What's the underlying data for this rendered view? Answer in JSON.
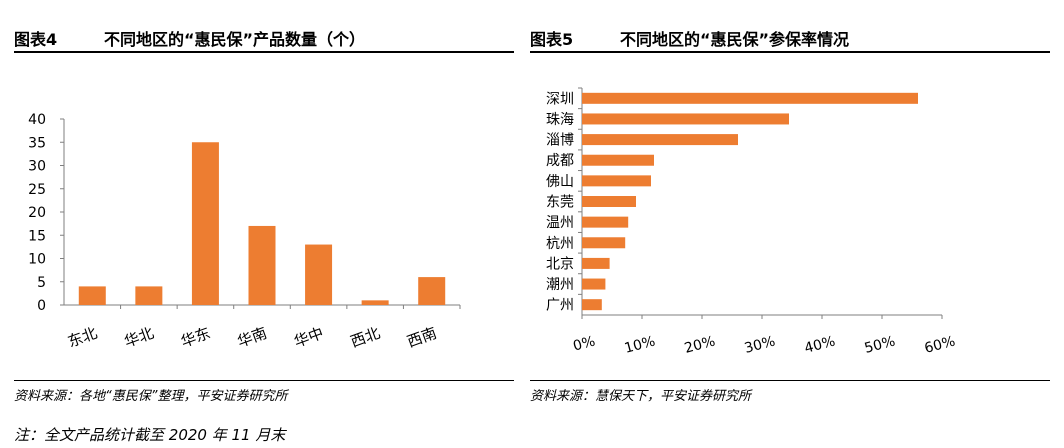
{
  "fig4": {
    "title_num": "图表4",
    "title_text": "不同地区的“惠民保”产品数量（个）",
    "source": "资料来源：各地“惠民保”整理，平安证券研究所"
  },
  "fig5": {
    "title_num": "图表5",
    "title_text": "不同地区的“惠民保”参保率情况",
    "source": "资料来源：慧保天下，平安证券研究所"
  },
  "note": "注：全文产品统计截至 2020 年 11 月末",
  "colors": {
    "bar": "#ED7D31",
    "axis": "#7f7f7f"
  },
  "chart_data": [
    {
      "type": "bar",
      "title": "不同地区的“惠民保”产品数量（个）",
      "categories": [
        "东北",
        "华北",
        "华东",
        "华南",
        "华中",
        "西北",
        "西南"
      ],
      "values": [
        4,
        4,
        35,
        17,
        13,
        1,
        6
      ],
      "ylim": [
        0,
        40
      ],
      "yticks": [
        "0",
        "5",
        "10",
        "15",
        "20",
        "25",
        "30",
        "35",
        "40"
      ],
      "xlabel": "",
      "ylabel": ""
    },
    {
      "type": "bar",
      "orientation": "horizontal",
      "title": "不同地区的“惠民保”参保率情况",
      "categories": [
        "深圳",
        "珠海",
        "淄博",
        "成都",
        "佛山",
        "东莞",
        "温州",
        "杭州",
        "北京",
        "潮州",
        "广州"
      ],
      "values": [
        56,
        34.5,
        26,
        12,
        11.5,
        9,
        7.7,
        7.2,
        4.6,
        3.9,
        3.3
      ],
      "xlim": [
        0,
        60
      ],
      "xticks": [
        "0%",
        "10%",
        "20%",
        "30%",
        "40%",
        "50%",
        "60%"
      ],
      "xlabel": "",
      "ylabel": ""
    }
  ]
}
